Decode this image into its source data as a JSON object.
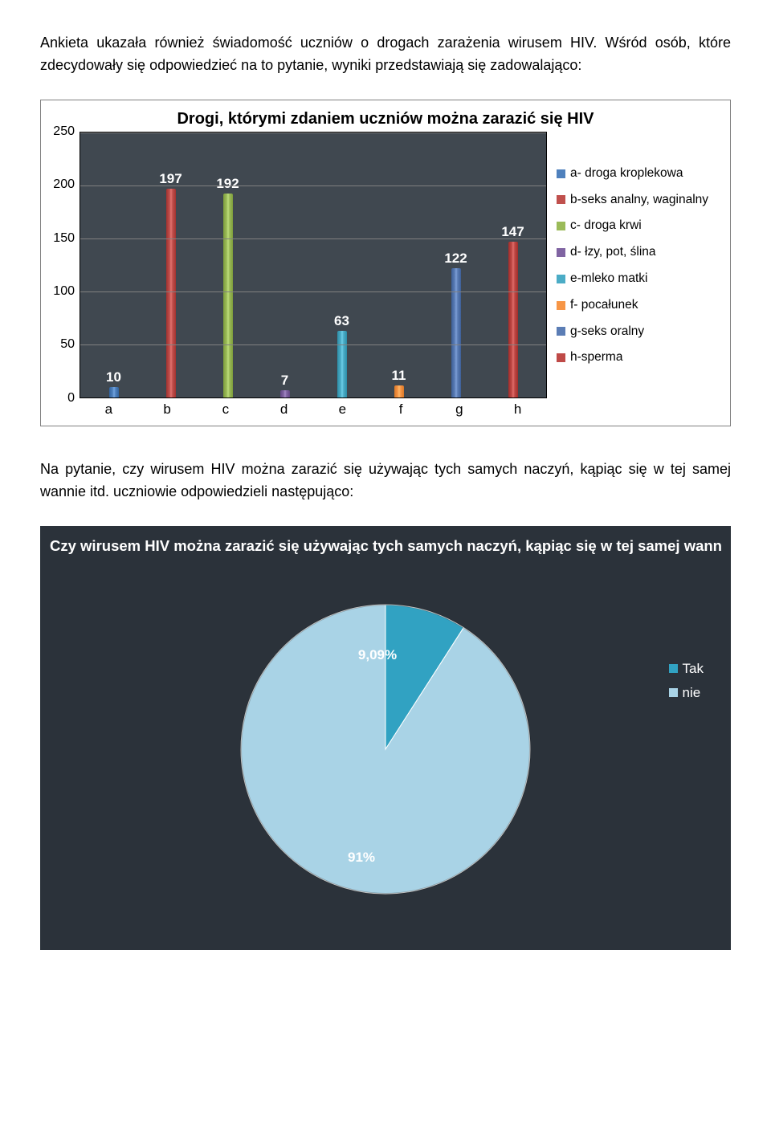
{
  "para1": "Ankieta ukazała również świadomość uczniów o drogach zarażenia wirusem HIV. Wśród osób, które zdecydowały się odpowiedzieć na to pytanie, wyniki przedstawiają się zadowalająco:",
  "para2": "Na pytanie, czy wirusem HIV można zarazić się używając tych samych naczyń, kąpiąc się w tej samej wannie itd. uczniowie odpowiedzieli następująco:",
  "bar_chart": {
    "title": "Drogi, którymi zdaniem uczniów można zarazić się HIV",
    "ylim": [
      0,
      250
    ],
    "ytick_step": 50,
    "background_color": "#404850",
    "grid_color": "#808080",
    "categories": [
      "a",
      "b",
      "c",
      "d",
      "e",
      "f",
      "g",
      "h"
    ],
    "values": [
      10,
      197,
      192,
      7,
      63,
      11,
      122,
      147
    ],
    "bar_colors": [
      "#4f81bd",
      "#c0504d",
      "#9bbb59",
      "#8064a2",
      "#4bacc6",
      "#f79646",
      "#5b7db5",
      "#bf4a47"
    ],
    "legend": [
      {
        "swatch": "#4f81bd",
        "label": "a- droga kroplekowa"
      },
      {
        "swatch": "#c0504d",
        "label": "b-seks analny, waginalny"
      },
      {
        "swatch": "#9bbb59",
        "label": "c- droga krwi"
      },
      {
        "swatch": "#8064a2",
        "label": "d- łzy, pot, ślina"
      },
      {
        "swatch": "#4bacc6",
        "label": "e-mleko matki"
      },
      {
        "swatch": "#f79646",
        "label": "f- pocałunek"
      },
      {
        "swatch": "#5b7db5",
        "label": "g-seks oralny"
      },
      {
        "swatch": "#bf4a47",
        "label": "h-sperma"
      }
    ]
  },
  "pie_chart": {
    "title": "Czy wirusem HIV można zarazić się używając tych samych naczyń, kąpiąc się w tej samej wannie, i",
    "background_color": "#2b323a",
    "slices": [
      {
        "label": "Tak",
        "value": 9.09,
        "display": "9,09%",
        "color": "#31a2c2"
      },
      {
        "label": "nie",
        "value": 90.91,
        "display": "91%",
        "color": "#a9d3e6"
      }
    ],
    "legend": [
      {
        "swatch": "#31a2c2",
        "label": "Tak"
      },
      {
        "swatch": "#a9d3e6",
        "label": "nie"
      }
    ],
    "radius": 180
  }
}
